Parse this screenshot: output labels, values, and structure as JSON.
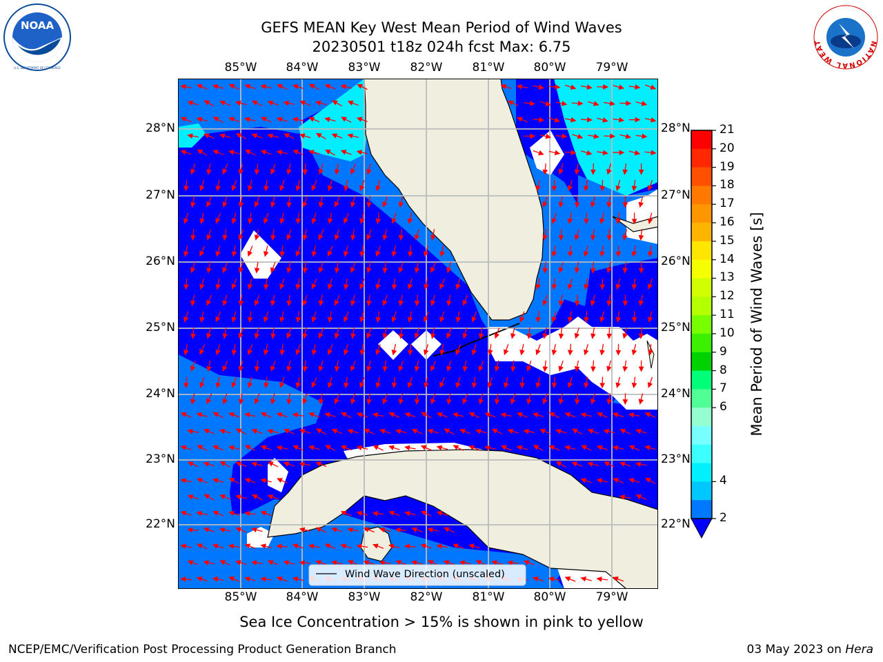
{
  "header": {
    "title_line1": "GEFS MEAN Key West Mean Period of Wind Waves",
    "title_line2": "20230501 t18z 024h fcst   Max: 6.75"
  },
  "logos": {
    "left": {
      "name": "noaa-logo",
      "text": "NOAA",
      "ring_text": "NATIONAL OCEANIC AND ATMOSPHERIC ADMINISTRATION · U.S. DEPARTMENT OF COMMERCE"
    },
    "right": {
      "name": "nws-logo",
      "ring_text": "NATIONAL WEATHER SERVICE"
    }
  },
  "map": {
    "lon_labels": [
      "85°W",
      "84°W",
      "83°W",
      "82°W",
      "81°W",
      "80°W",
      "79°W"
    ],
    "lat_labels": [
      "28°N",
      "27°N",
      "26°N",
      "25°N",
      "24°N",
      "23°N",
      "22°N"
    ],
    "legend_label": "Wind Wave Direction (unscaled)",
    "colors": {
      "ocean_dark": "#0000ff",
      "ocean_mid": "#0077ff",
      "ocean_light": "#00eeff",
      "land": "#efeedf",
      "arrows": "#ff0000",
      "grid": "#bbbbbb"
    }
  },
  "colorbar": {
    "label": "Mean Period of Wind Waves [s]",
    "ticks": [
      "21",
      "20",
      "19",
      "18",
      "17",
      "16",
      "15",
      "14",
      "13",
      "12",
      "11",
      "10",
      "9",
      "8",
      "7",
      "6",
      "4",
      "2"
    ],
    "colors_top_to_bottom": [
      "#ff0000",
      "#ff2800",
      "#ff5000",
      "#ff7800",
      "#ff9600",
      "#ffb400",
      "#ffe600",
      "#f5ff00",
      "#d2ff00",
      "#b4ff00",
      "#78ff00",
      "#3cf000",
      "#00d200",
      "#00ff78",
      "#50ff96",
      "#96ffd2",
      "#78ffff",
      "#3cffff",
      "#00f0ff",
      "#00c8ff",
      "#0078ff"
    ],
    "under_color": "#0000ff"
  },
  "footer": {
    "note": "Sea Ice Concentration > 15% is shown in pink to yellow",
    "left": "NCEP/EMC/Verification Post Processing Product Generation Branch",
    "right_prefix": "03 May 2023 on ",
    "right_host": "Hera"
  }
}
